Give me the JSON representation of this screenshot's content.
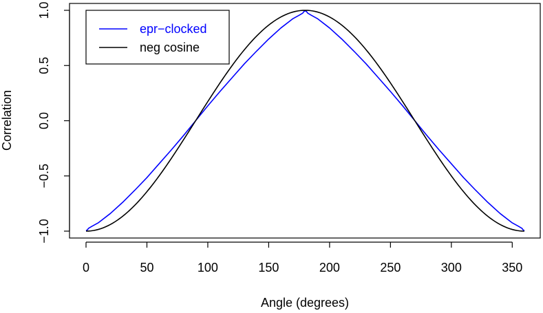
{
  "chart_data": {
    "type": "line",
    "title": "",
    "xlabel": "Angle (degrees)",
    "ylabel": "Correlation",
    "xlim": [
      0,
      360
    ],
    "ylim": [
      -1.0,
      1.0
    ],
    "x_ticks": [
      0,
      50,
      100,
      150,
      200,
      250,
      300,
      350
    ],
    "x_tick_labels": [
      "0",
      "50",
      "100",
      "150",
      "200",
      "250",
      "300",
      "350"
    ],
    "y_ticks": [
      -1.0,
      -0.5,
      0.0,
      0.5,
      1.0
    ],
    "y_tick_labels": [
      "−1.0",
      "−0.5",
      "0.0",
      "0.5",
      "1.0"
    ],
    "grid": false,
    "legend_position": "top-left",
    "series": [
      {
        "name": "epr−clocked",
        "color": "#0000ff",
        "x": [
          0,
          1,
          2,
          5,
          10,
          20,
          30,
          40,
          50,
          60,
          70,
          80,
          90,
          100,
          110,
          120,
          130,
          140,
          150,
          160,
          170,
          175,
          178,
          179,
          180,
          181,
          182,
          185,
          190,
          200,
          210,
          220,
          230,
          240,
          250,
          260,
          270,
          280,
          290,
          300,
          310,
          320,
          330,
          340,
          350,
          355,
          358,
          359,
          360
        ],
        "y": [
          -0.995,
          -0.99,
          -0.975,
          -0.955,
          -0.925,
          -0.84,
          -0.74,
          -0.63,
          -0.515,
          -0.39,
          -0.265,
          -0.135,
          0.0,
          0.135,
          0.265,
          0.39,
          0.515,
          0.63,
          0.74,
          0.84,
          0.925,
          0.955,
          0.975,
          0.99,
          0.995,
          0.99,
          0.975,
          0.955,
          0.925,
          0.84,
          0.74,
          0.63,
          0.515,
          0.39,
          0.265,
          0.135,
          0.0,
          -0.135,
          -0.265,
          -0.39,
          -0.515,
          -0.63,
          -0.74,
          -0.84,
          -0.925,
          -0.955,
          -0.975,
          -0.99,
          -0.995
        ]
      },
      {
        "name": "neg cosine",
        "color": "#000000",
        "function": "-cos(x)",
        "x_step": 2
      }
    ]
  }
}
